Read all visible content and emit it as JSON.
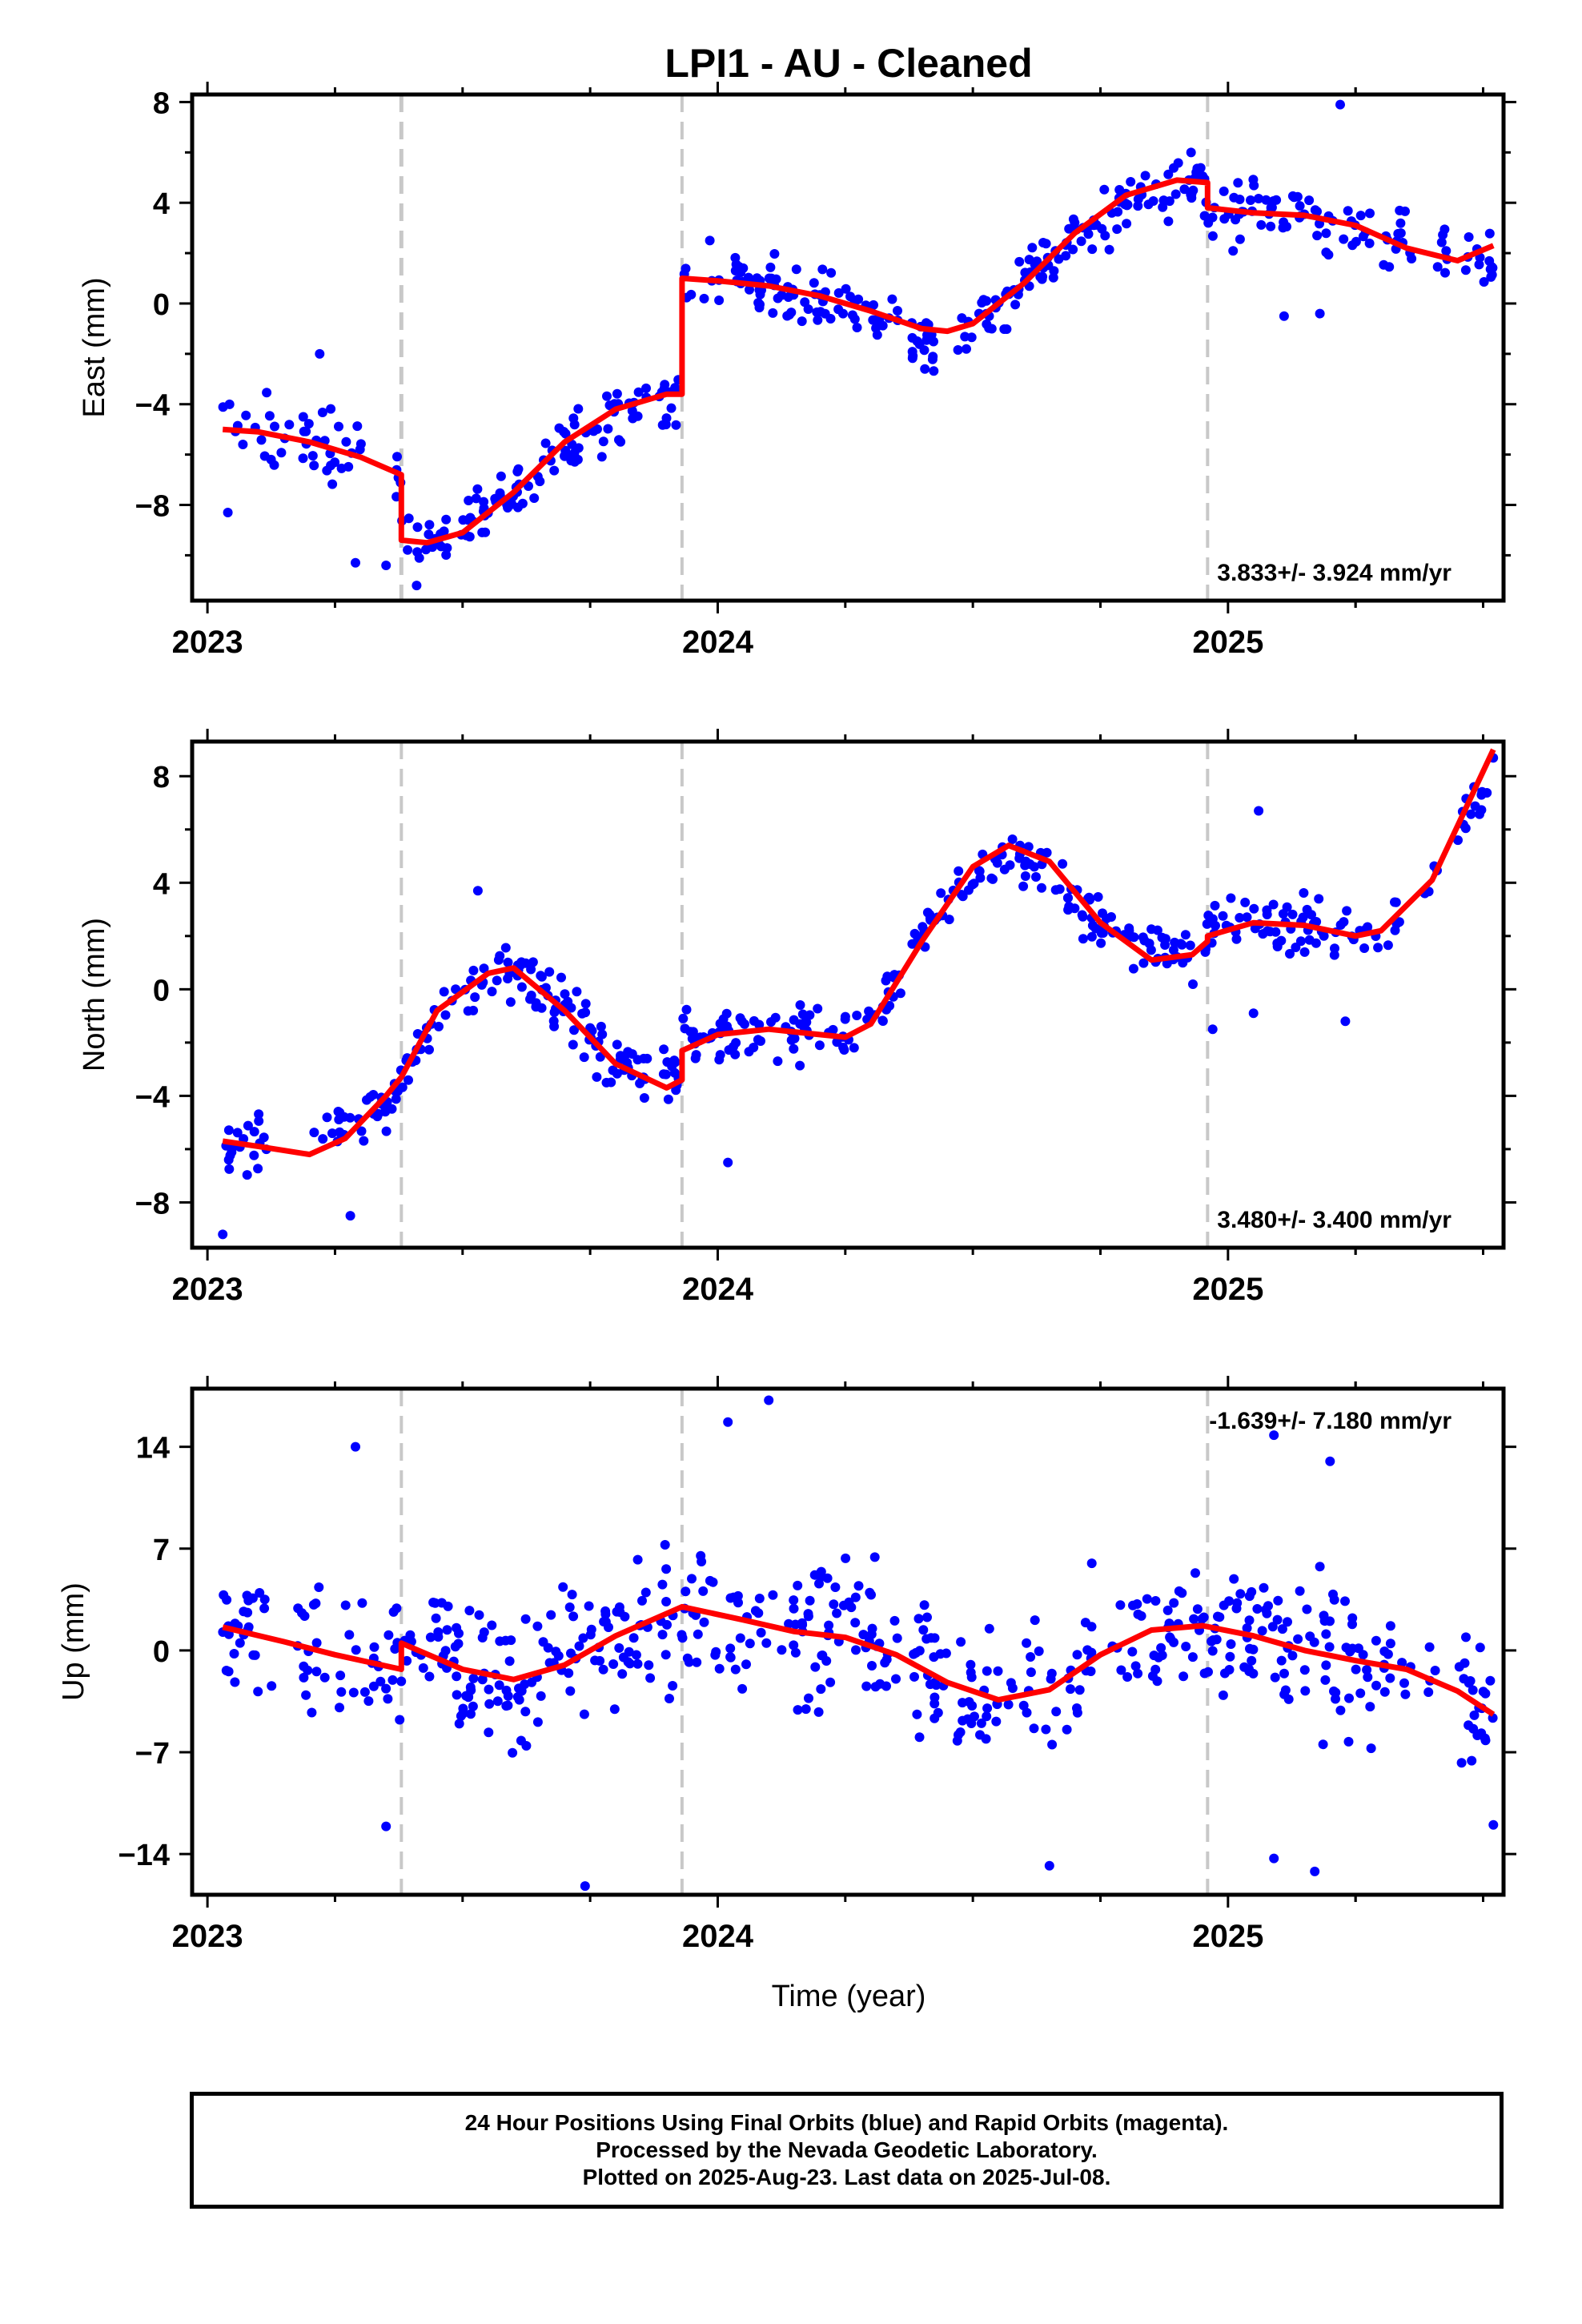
{
  "title": "LPI1  - AU - Cleaned",
  "xlabel": "Time (year)",
  "colors": {
    "data": "#0000ff",
    "fit": "#ff0000",
    "event": "#c8c8c8",
    "frame": "#000000"
  },
  "footer": {
    "line1": "24 Hour Positions Using Final Orbits (blue) and Rapid Orbits (magenta).",
    "line2": "Processed by the Nevada Geodetic Laboratory.",
    "line3": "Plotted on 2025-Aug-23. Last data on 2025-Jul-08."
  },
  "chart_data": [
    {
      "type": "scatter",
      "panel": "east",
      "ylabel": "East (mm)",
      "rate_label": "3.833+/- 3.924 mm/yr",
      "xlim": [
        2022.97,
        2025.54
      ],
      "ylim": [
        -11.8,
        8.3
      ],
      "x_ticks": [
        2023,
        2024,
        2025
      ],
      "y_ticks": [
        8,
        4,
        0,
        -4,
        -8
      ],
      "event_lines": [
        2023.38,
        2023.93,
        2024.96
      ],
      "fit": {
        "x": [
          2023.03,
          2023.1,
          2023.2,
          2023.3,
          2023.38,
          2023.38,
          2023.43,
          2023.5,
          2023.6,
          2023.7,
          2023.8,
          2023.9,
          2023.93,
          2023.93,
          2024.0,
          2024.1,
          2024.2,
          2024.3,
          2024.4,
          2024.45,
          2024.5,
          2024.6,
          2024.7,
          2024.8,
          2024.9,
          2024.96,
          2024.96,
          2025.05,
          2025.15,
          2025.25,
          2025.35,
          2025.45,
          2025.52
        ],
        "y": [
          -5.0,
          -5.1,
          -5.5,
          -6.1,
          -6.8,
          -9.4,
          -9.5,
          -9.1,
          -7.5,
          -5.5,
          -4.2,
          -3.6,
          -3.6,
          1.0,
          0.9,
          0.7,
          0.3,
          -0.3,
          -1.0,
          -1.1,
          -0.8,
          0.8,
          2.8,
          4.3,
          4.9,
          4.8,
          3.8,
          3.6,
          3.5,
          3.1,
          2.2,
          1.7,
          2.3
        ]
      },
      "points": {
        "anchors_x": [
          2023.03,
          2023.2,
          2023.3,
          2023.38,
          2023.38,
          2023.43,
          2023.5,
          2023.6,
          2023.7,
          2023.8,
          2023.93,
          2023.93,
          2024.1,
          2024.3,
          2024.4,
          2024.45,
          2024.6,
          2024.8,
          2024.96,
          2024.96,
          2025.15,
          2025.3,
          2025.52
        ],
        "anchors_y": [
          -4.6,
          -5.5,
          -6.1,
          -6.6,
          -9.2,
          -9.4,
          -9.0,
          -7.5,
          -5.7,
          -4.4,
          -3.6,
          1.0,
          0.7,
          -0.3,
          -1.6,
          -1.8,
          0.8,
          4.3,
          4.8,
          3.8,
          3.5,
          2.8,
          1.3
        ],
        "gaps": [
          [
            2023.31,
            2023.36
          ],
          [
            2024.36,
            2024.38
          ],
          [
            2024.43,
            2024.47
          ],
          [
            2025.36,
            2025.41
          ],
          [
            2025.43,
            2025.46
          ]
        ],
        "scatter_mm": 1.2,
        "outliers": [
          [
            2023.04,
            -8.3
          ],
          [
            2023.29,
            -10.3
          ],
          [
            2023.35,
            -10.4
          ],
          [
            2023.41,
            -11.2
          ],
          [
            2023.22,
            -2.0
          ],
          [
            2025.11,
            -0.5
          ],
          [
            2025.18,
            -0.4
          ],
          [
            2025.22,
            7.9
          ]
        ],
        "count": 520
      }
    },
    {
      "type": "scatter",
      "panel": "north",
      "ylabel": "North (mm)",
      "rate_label": "3.480+/- 3.400 mm/yr",
      "xlim": [
        2022.97,
        2025.54
      ],
      "ylim": [
        -9.7,
        9.3
      ],
      "x_ticks": [
        2023,
        2024,
        2025
      ],
      "y_ticks": [
        8,
        4,
        0,
        -4,
        -8
      ],
      "event_lines": [
        2023.38,
        2023.93,
        2024.96
      ],
      "fit": {
        "x": [
          2023.03,
          2023.1,
          2023.2,
          2023.27,
          2023.35,
          2023.38,
          2023.45,
          2023.55,
          2023.6,
          2023.7,
          2023.8,
          2023.9,
          2023.93,
          2023.93,
          2024.0,
          2024.1,
          2024.2,
          2024.25,
          2024.3,
          2024.4,
          2024.5,
          2024.57,
          2024.65,
          2024.75,
          2024.85,
          2024.93,
          2024.96,
          2024.96,
          2025.05,
          2025.15,
          2025.25,
          2025.3,
          2025.4,
          2025.52
        ],
        "y": [
          -5.7,
          -5.9,
          -6.2,
          -5.6,
          -4.0,
          -3.3,
          -0.8,
          0.6,
          0.8,
          -0.8,
          -2.8,
          -3.7,
          -3.4,
          -2.3,
          -1.7,
          -1.5,
          -1.7,
          -1.8,
          -1.3,
          1.8,
          4.6,
          5.4,
          4.8,
          2.5,
          1.1,
          1.3,
          1.8,
          2.0,
          2.5,
          2.4,
          2.0,
          2.2,
          4.1,
          9.0
        ]
      },
      "points": {
        "anchors_x": [
          2023.03,
          2023.2,
          2023.35,
          2023.45,
          2023.55,
          2023.6,
          2023.7,
          2023.8,
          2023.93,
          2023.93,
          2024.1,
          2024.25,
          2024.3,
          2024.4,
          2024.57,
          2024.75,
          2024.93,
          2024.96,
          2024.96,
          2025.15,
          2025.3,
          2025.4,
          2025.52
        ],
        "anchors_y": [
          -6.0,
          -5.3,
          -4.5,
          -0.8,
          0.6,
          0.8,
          -0.8,
          -2.8,
          -3.4,
          -1.8,
          -1.5,
          -1.8,
          -1.3,
          2.3,
          5.4,
          2.5,
          1.3,
          1.8,
          2.6,
          2.4,
          1.9,
          4.1,
          8.0
        ],
        "gaps": [
          [
            2023.12,
            2023.2
          ],
          [
            2024.36,
            2024.38
          ],
          [
            2025.35,
            2025.38
          ],
          [
            2025.41,
            2025.45
          ]
        ],
        "scatter_mm": 1.0,
        "outliers": [
          [
            2023.03,
            -9.2
          ],
          [
            2023.28,
            -8.5
          ],
          [
            2024.02,
            -6.5
          ],
          [
            2023.53,
            3.7
          ],
          [
            2025.06,
            6.7
          ],
          [
            2024.97,
            -1.5
          ],
          [
            2025.05,
            -0.9
          ],
          [
            2025.23,
            -1.2
          ]
        ],
        "count": 520
      }
    },
    {
      "type": "scatter",
      "panel": "up",
      "ylabel": "Up (mm)",
      "rate_label": "-1.639+/- 7.180 mm/yr",
      "xlim": [
        2022.97,
        2025.54
      ],
      "ylim": [
        -16.8,
        18.0
      ],
      "x_ticks": [
        2023,
        2024,
        2025
      ],
      "y_ticks": [
        14,
        7,
        0,
        -7,
        -14
      ],
      "event_lines": [
        2023.38,
        2023.93,
        2024.96
      ],
      "fit": {
        "x": [
          2023.03,
          2023.15,
          2023.25,
          2023.38,
          2023.38,
          2023.5,
          2023.6,
          2023.7,
          2023.8,
          2023.93,
          2024.05,
          2024.15,
          2024.25,
          2024.35,
          2024.45,
          2024.55,
          2024.65,
          2024.75,
          2024.85,
          2024.95,
          2025.05,
          2025.15,
          2025.25,
          2025.35,
          2025.45,
          2025.52
        ],
        "y": [
          1.6,
          0.6,
          -0.3,
          -1.3,
          0.5,
          -1.3,
          -2.0,
          -1.0,
          1.0,
          3.0,
          2.1,
          1.3,
          0.9,
          -0.3,
          -2.2,
          -3.4,
          -2.7,
          -0.3,
          1.4,
          1.7,
          1.0,
          0.0,
          -0.7,
          -1.3,
          -2.8,
          -4.4
        ]
      },
      "points": {
        "anchors_x": [
          2023.03,
          2023.15,
          2023.25,
          2023.38,
          2023.38,
          2023.5,
          2023.6,
          2023.7,
          2023.8,
          2023.93,
          2024.05,
          2024.15,
          2024.25,
          2024.35,
          2024.45,
          2024.55,
          2024.65,
          2024.75,
          2024.85,
          2024.95,
          2025.05,
          2025.15,
          2025.25,
          2025.35,
          2025.45,
          2025.52
        ],
        "anchors_y": [
          1.6,
          0.6,
          -0.3,
          -1.3,
          0.5,
          -1.3,
          -2.0,
          -1.0,
          1.0,
          3.0,
          2.1,
          1.3,
          0.9,
          -0.3,
          -2.2,
          -3.4,
          -2.7,
          -0.3,
          1.4,
          1.7,
          1.0,
          0.0,
          -0.7,
          -1.3,
          -2.8,
          -4.4
        ],
        "gaps": [
          [
            2023.13,
            2023.17
          ],
          [
            2024.36,
            2024.38
          ],
          [
            2025.36,
            2025.39
          ],
          [
            2025.41,
            2025.45
          ]
        ],
        "scatter_mm": 4.8,
        "outliers": [
          [
            2024.1,
            17.2
          ],
          [
            2024.02,
            15.7
          ],
          [
            2023.29,
            14.0
          ],
          [
            2025.09,
            14.8
          ],
          [
            2025.2,
            13.0
          ],
          [
            2023.74,
            -16.2
          ],
          [
            2024.65,
            -14.8
          ],
          [
            2025.09,
            -14.3
          ],
          [
            2025.17,
            -15.2
          ],
          [
            2023.35,
            -12.1
          ],
          [
            2025.52,
            -12.0
          ]
        ],
        "count": 600
      }
    }
  ]
}
